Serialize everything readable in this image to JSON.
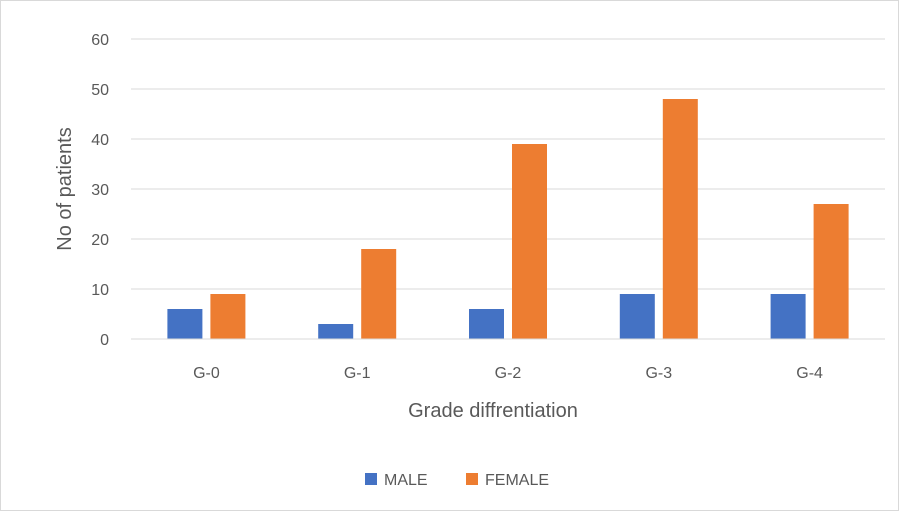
{
  "chart_data": {
    "type": "bar",
    "categories": [
      "G-0",
      "G-1",
      "G-2",
      "G-3",
      "G-4"
    ],
    "series": [
      {
        "name": "MALE",
        "values": [
          6,
          3,
          6,
          9,
          9
        ],
        "color": "#4472c4"
      },
      {
        "name": "FEMALE",
        "values": [
          9,
          18,
          39,
          48,
          27
        ],
        "color": "#ed7d31"
      }
    ],
    "xlabel": "Grade diffrentiation",
    "ylabel": "No of patients",
    "ylim": [
      0,
      60
    ],
    "yticks": [
      0,
      10,
      20,
      30,
      40,
      50,
      60
    ],
    "grid": true,
    "legend": "bottom"
  }
}
